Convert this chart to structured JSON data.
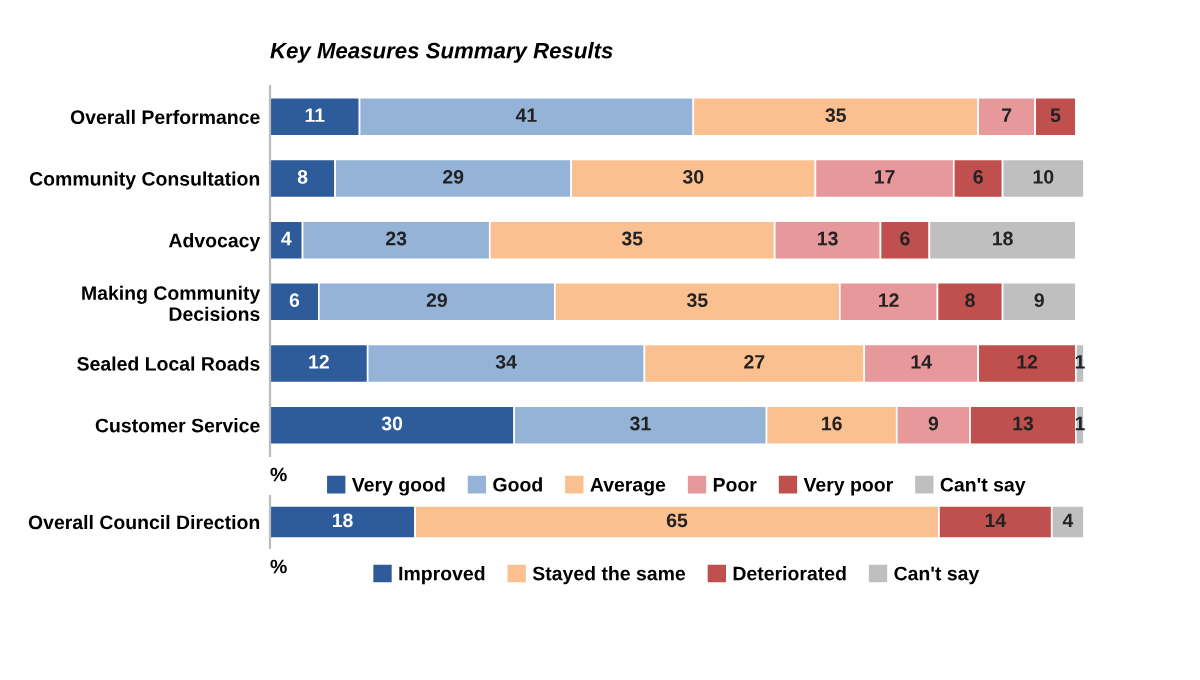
{
  "chart_data": [
    {
      "type": "bar",
      "title": "Key Measures Summary Results",
      "orientation": "horizontal",
      "stacked": true,
      "data_labels": true,
      "legend": "bottom",
      "grid": false,
      "annotations": [
        "%"
      ],
      "categories": [
        "Overall Performance",
        "Community Consultation",
        "Advocacy",
        "Making Community\nDecisions",
        "Sealed Local Roads",
        "Customer Service"
      ],
      "series": [
        {
          "name": "Very good",
          "color": "#2e5b9a",
          "values": [
            11,
            8,
            4,
            6,
            12,
            30
          ]
        },
        {
          "name": "Good",
          "color": "#95b3d7",
          "values": [
            41,
            29,
            23,
            29,
            34,
            31
          ]
        },
        {
          "name": "Average",
          "color": "#fac090",
          "values": [
            35,
            30,
            35,
            35,
            27,
            16
          ]
        },
        {
          "name": "Poor",
          "color": "#e6989a",
          "values": [
            7,
            17,
            13,
            12,
            14,
            9
          ]
        },
        {
          "name": "Very poor",
          "color": "#c0504d",
          "values": [
            5,
            6,
            6,
            8,
            12,
            13
          ]
        },
        {
          "name": "Can't say",
          "color": "#bfbfbf",
          "values": [
            null,
            10,
            18,
            9,
            1,
            1
          ]
        }
      ]
    },
    {
      "type": "bar",
      "orientation": "horizontal",
      "stacked": true,
      "data_labels": true,
      "legend": "bottom",
      "grid": false,
      "annotations": [
        "%"
      ],
      "categories": [
        "Overall Council Direction"
      ],
      "series": [
        {
          "name": "Improved",
          "color": "#2e5b9a",
          "values": [
            18
          ]
        },
        {
          "name": "Stayed the same",
          "color": "#fac090",
          "values": [
            65
          ]
        },
        {
          "name": "Deteriorated",
          "color": "#c0504d",
          "values": [
            14
          ]
        },
        {
          "name": "Can't say",
          "color": "#bfbfbf",
          "values": [
            4
          ]
        }
      ]
    }
  ]
}
